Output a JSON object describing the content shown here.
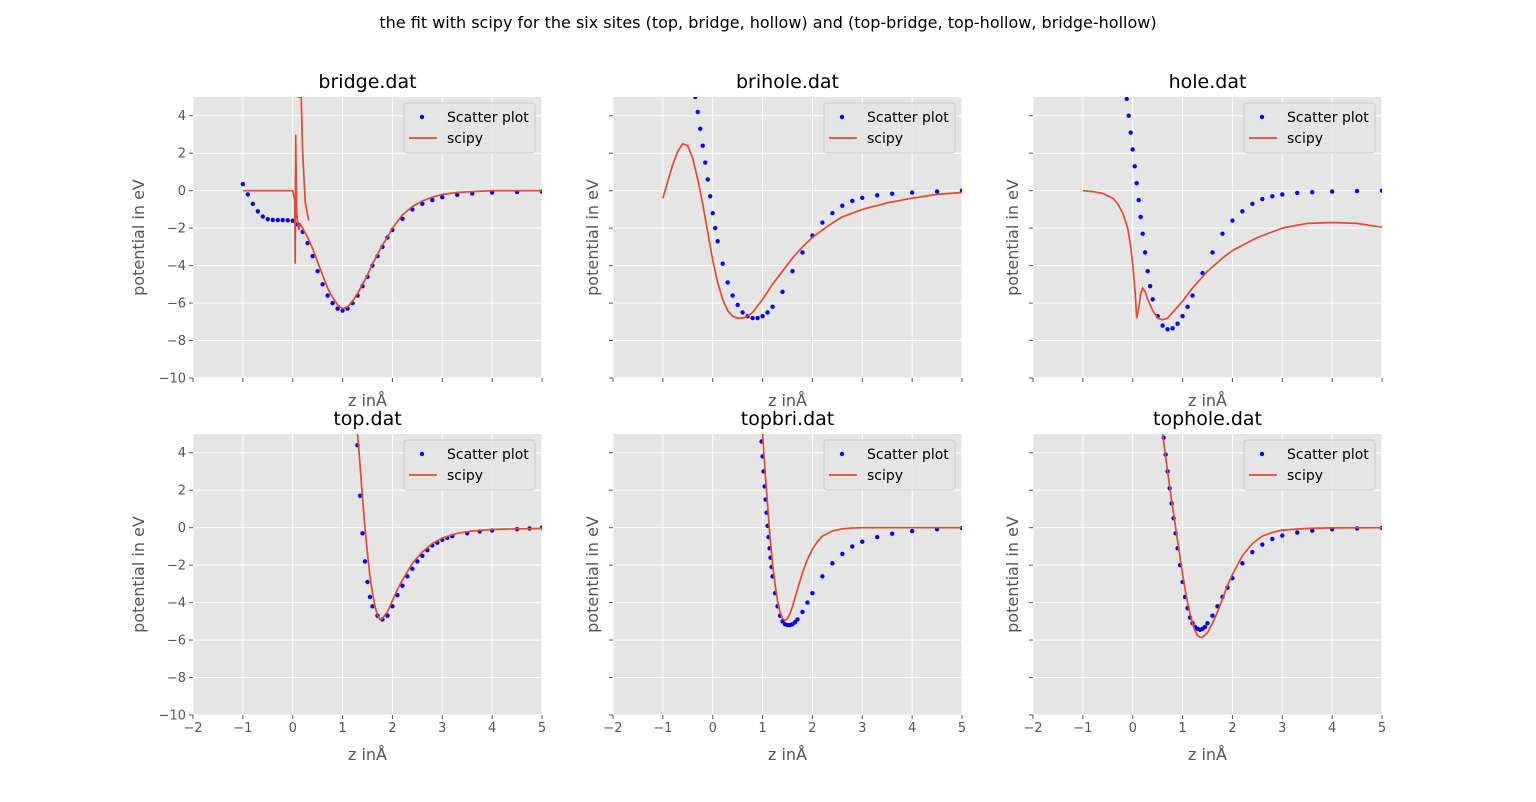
{
  "figure": {
    "suptitle": "the fit with scipy for the six sites (top, bridge, hollow) and (top-bridge, top-hollow, bridge-hollow)"
  },
  "colors": {
    "axes_bg": "#e5e5e5",
    "grid": "#ffffff",
    "scatter": "#0000ff",
    "fit": "#e24a33",
    "tick_text": "#555555"
  },
  "chart_data": [
    {
      "type": "scatter",
      "title": "bridge.dat",
      "xlabel": "z inÅ",
      "ylabel": "potential in eV",
      "xlim": [
        -2,
        5
      ],
      "ylim": [
        -10,
        5
      ],
      "xticks": [
        -2,
        -1,
        0,
        1,
        2,
        3,
        4,
        5
      ],
      "yticks": [
        -10,
        -8,
        -6,
        -4,
        -2,
        0,
        2,
        4
      ],
      "show_xtick_labels": false,
      "show_ytick_labels": true,
      "grid": true,
      "legend": "top-right",
      "series": [
        {
          "name": "Scatter plot",
          "kind": "scatter",
          "x": [
            -1.0,
            -0.9,
            -0.8,
            -0.7,
            -0.6,
            -0.5,
            -0.4,
            -0.3,
            -0.2,
            -0.1,
            0.0,
            0.1,
            0.2,
            0.3,
            0.4,
            0.5,
            0.6,
            0.7,
            0.8,
            0.9,
            1.0,
            1.1,
            1.2,
            1.3,
            1.4,
            1.5,
            1.6,
            1.7,
            1.8,
            1.9,
            2.0,
            2.2,
            2.4,
            2.6,
            2.8,
            3.0,
            3.3,
            3.6,
            4.0,
            4.5,
            5.0
          ],
          "y": [
            0.35,
            -0.2,
            -0.7,
            -1.1,
            -1.38,
            -1.52,
            -1.56,
            -1.57,
            -1.57,
            -1.58,
            -1.6,
            -1.8,
            -2.2,
            -2.8,
            -3.5,
            -4.3,
            -5.0,
            -5.6,
            -6.0,
            -6.3,
            -6.4,
            -6.3,
            -6.0,
            -5.6,
            -5.1,
            -4.6,
            -4.0,
            -3.5,
            -3.0,
            -2.5,
            -2.1,
            -1.5,
            -1.0,
            -0.7,
            -0.5,
            -0.35,
            -0.22,
            -0.15,
            -0.1,
            -0.07,
            -0.05
          ]
        },
        {
          "name": "scipy",
          "kind": "line",
          "x": [
            -1.0,
            -0.5,
            0.0,
            0.04,
            0.05,
            0.06,
            0.08,
            0.1,
            0.12,
            0.15,
            0.2,
            0.3,
            0.4,
            0.5,
            0.6,
            0.7,
            0.8,
            0.9,
            1.0,
            1.1,
            1.2,
            1.3,
            1.4,
            1.5,
            1.6,
            1.7,
            1.8,
            1.9,
            2.0,
            2.2,
            2.4,
            2.6,
            2.8,
            3.0,
            3.3,
            3.6,
            4.0,
            4.5,
            5.0
          ],
          "y": [
            0,
            0,
            0,
            -0.5,
            -3.9,
            3.0,
            -1.2,
            -1.7,
            -2.1,
            -1.8,
            -2.0,
            -2.5,
            -3.1,
            -3.8,
            -4.5,
            -5.2,
            -5.7,
            -6.1,
            -6.3,
            -6.2,
            -5.9,
            -5.5,
            -5.0,
            -4.5,
            -3.9,
            -3.4,
            -2.9,
            -2.5,
            -2.0,
            -1.3,
            -0.85,
            -0.55,
            -0.35,
            -0.2,
            -0.1,
            -0.05,
            0.0,
            0.0,
            0.0
          ],
          "spike": {
            "x": [
              0.09,
              0.17,
              0.2,
              0.25,
              0.32
            ],
            "y": [
              5,
              5,
              2.0,
              -0.6,
              -1.6
            ]
          }
        }
      ]
    },
    {
      "type": "scatter",
      "title": "brihole.dat",
      "xlabel": "z inÅ",
      "ylabel": "potential in eV",
      "xlim": [
        -2,
        5
      ],
      "ylim": [
        -10,
        5
      ],
      "xticks": [
        -2,
        -1,
        0,
        1,
        2,
        3,
        4,
        5
      ],
      "yticks": [
        -10,
        -8,
        -6,
        -4,
        -2,
        0,
        2,
        4
      ],
      "show_xtick_labels": false,
      "show_ytick_labels": false,
      "grid": true,
      "legend": "top-right",
      "series": [
        {
          "name": "Scatter plot",
          "kind": "scatter",
          "x": [
            -0.35,
            -0.3,
            -0.25,
            -0.2,
            -0.15,
            -0.1,
            -0.05,
            0.0,
            0.05,
            0.1,
            0.2,
            0.3,
            0.4,
            0.5,
            0.6,
            0.7,
            0.8,
            0.9,
            1.0,
            1.1,
            1.2,
            1.4,
            1.6,
            1.8,
            2.0,
            2.2,
            2.4,
            2.6,
            2.8,
            3.0,
            3.3,
            3.6,
            4.0,
            4.5,
            5.0
          ],
          "y": [
            5.0,
            4.2,
            3.3,
            2.4,
            1.5,
            0.6,
            -0.3,
            -1.2,
            -2.0,
            -2.7,
            -3.9,
            -4.9,
            -5.6,
            -6.1,
            -6.5,
            -6.7,
            -6.8,
            -6.8,
            -6.7,
            -6.5,
            -6.2,
            -5.4,
            -4.3,
            -3.3,
            -2.4,
            -1.7,
            -1.2,
            -0.8,
            -0.55,
            -0.38,
            -0.25,
            -0.16,
            -0.1,
            -0.05,
            0.0
          ]
        },
        {
          "name": "scipy",
          "kind": "line",
          "x": [
            -1.0,
            -0.9,
            -0.8,
            -0.7,
            -0.6,
            -0.5,
            -0.4,
            -0.3,
            -0.2,
            -0.1,
            0.0,
            0.1,
            0.2,
            0.3,
            0.4,
            0.5,
            0.6,
            0.7,
            0.8,
            1.0,
            1.2,
            1.4,
            1.6,
            1.8,
            2.0,
            2.3,
            2.6,
            3.0,
            3.5,
            4.0,
            4.5,
            5.0
          ],
          "y": [
            -0.4,
            0.5,
            1.4,
            2.1,
            2.5,
            2.4,
            1.7,
            0.6,
            -0.7,
            -2.2,
            -3.7,
            -4.9,
            -5.8,
            -6.4,
            -6.7,
            -6.8,
            -6.8,
            -6.7,
            -6.5,
            -5.8,
            -5.0,
            -4.3,
            -3.6,
            -3.0,
            -2.5,
            -1.9,
            -1.4,
            -1.0,
            -0.65,
            -0.4,
            -0.2,
            -0.1
          ]
        }
      ]
    },
    {
      "type": "scatter",
      "title": "hole.dat",
      "xlabel": "z inÅ",
      "ylabel": "potential in eV",
      "xlim": [
        -2,
        5
      ],
      "ylim": [
        -10,
        5
      ],
      "xticks": [
        -2,
        -1,
        0,
        1,
        2,
        3,
        4,
        5
      ],
      "yticks": [
        -10,
        -8,
        -6,
        -4,
        -2,
        0,
        2,
        4
      ],
      "show_xtick_labels": false,
      "show_ytick_labels": false,
      "grid": true,
      "legend": "top-right",
      "series": [
        {
          "name": "Scatter plot",
          "kind": "scatter",
          "x": [
            -0.12,
            -0.08,
            -0.04,
            0.0,
            0.04,
            0.08,
            0.12,
            0.16,
            0.2,
            0.25,
            0.3,
            0.35,
            0.4,
            0.5,
            0.6,
            0.7,
            0.8,
            0.9,
            1.0,
            1.1,
            1.2,
            1.4,
            1.6,
            1.8,
            2.0,
            2.2,
            2.4,
            2.6,
            2.8,
            3.0,
            3.3,
            3.6,
            4.0,
            4.5,
            5.0
          ],
          "y": [
            4.9,
            4.0,
            3.1,
            2.2,
            1.3,
            0.4,
            -0.5,
            -1.4,
            -2.3,
            -3.3,
            -4.3,
            -5.1,
            -5.8,
            -6.7,
            -7.2,
            -7.4,
            -7.35,
            -7.1,
            -6.7,
            -6.2,
            -5.6,
            -4.4,
            -3.3,
            -2.3,
            -1.6,
            -1.1,
            -0.7,
            -0.45,
            -0.3,
            -0.2,
            -0.12,
            -0.08,
            -0.05,
            -0.02,
            0.0
          ]
        },
        {
          "name": "scipy",
          "kind": "line",
          "x": [
            -1.0,
            -0.8,
            -0.6,
            -0.4,
            -0.3,
            -0.2,
            -0.1,
            -0.05,
            0.0,
            0.05,
            0.08,
            0.12,
            0.16,
            0.2,
            0.25,
            0.3,
            0.4,
            0.5,
            0.6,
            0.7,
            0.8,
            1.0,
            1.2,
            1.5,
            1.8,
            2.0,
            2.5,
            3.0,
            3.5,
            4.0,
            4.5,
            5.0
          ],
          "y": [
            0.0,
            -0.05,
            -0.15,
            -0.4,
            -0.7,
            -1.2,
            -2.0,
            -2.8,
            -3.9,
            -5.5,
            -6.8,
            -6.3,
            -5.5,
            -5.2,
            -5.4,
            -5.8,
            -6.4,
            -6.8,
            -6.9,
            -6.8,
            -6.5,
            -5.9,
            -5.2,
            -4.3,
            -3.6,
            -3.2,
            -2.5,
            -2.0,
            -1.75,
            -1.7,
            -1.75,
            -1.95
          ]
        }
      ]
    },
    {
      "type": "scatter",
      "title": "top.dat",
      "xlabel": "z inÅ",
      "ylabel": "potential in eV",
      "xlim": [
        -2,
        5
      ],
      "ylim": [
        -10,
        5
      ],
      "xticks": [
        -2,
        -1,
        0,
        1,
        2,
        3,
        4,
        5
      ],
      "yticks": [
        -10,
        -8,
        -6,
        -4,
        -2,
        0,
        2,
        4
      ],
      "show_xtick_labels": true,
      "show_ytick_labels": true,
      "grid": true,
      "legend": "top-right",
      "series": [
        {
          "name": "Scatter plot",
          "kind": "scatter",
          "x": [
            1.3,
            1.35,
            1.4,
            1.45,
            1.5,
            1.55,
            1.6,
            1.7,
            1.8,
            1.9,
            2.0,
            2.1,
            2.2,
            2.3,
            2.4,
            2.5,
            2.6,
            2.7,
            2.8,
            2.9,
            3.0,
            3.1,
            3.2,
            3.5,
            3.75,
            4.0,
            4.5,
            4.75,
            5.0
          ],
          "y": [
            4.4,
            1.7,
            -0.3,
            -1.8,
            -2.9,
            -3.7,
            -4.2,
            -4.7,
            -4.9,
            -4.7,
            -4.2,
            -3.6,
            -3.1,
            -2.6,
            -2.2,
            -1.8,
            -1.5,
            -1.2,
            -0.95,
            -0.8,
            -0.65,
            -0.55,
            -0.45,
            -0.3,
            -0.2,
            -0.15,
            -0.08,
            -0.04,
            0.0
          ]
        },
        {
          "name": "scipy",
          "kind": "line",
          "x": [
            1.3,
            1.35,
            1.4,
            1.45,
            1.5,
            1.55,
            1.6,
            1.65,
            1.7,
            1.75,
            1.8,
            1.9,
            2.0,
            2.1,
            2.2,
            2.4,
            2.6,
            2.8,
            3.0,
            3.3,
            3.6,
            4.0,
            4.5,
            5.0
          ],
          "y": [
            5.0,
            3.4,
            1.6,
            0.0,
            -1.4,
            -2.6,
            -3.5,
            -4.2,
            -4.7,
            -4.9,
            -4.85,
            -4.5,
            -3.9,
            -3.3,
            -2.8,
            -1.9,
            -1.3,
            -0.85,
            -0.55,
            -0.3,
            -0.18,
            -0.1,
            -0.06,
            -0.04
          ]
        }
      ]
    },
    {
      "type": "scatter",
      "title": "topbri.dat",
      "xlabel": "z inÅ",
      "ylabel": "potential in eV",
      "xlim": [
        -2,
        5
      ],
      "ylim": [
        -10,
        5
      ],
      "xticks": [
        -2,
        -1,
        0,
        1,
        2,
        3,
        4,
        5
      ],
      "yticks": [
        -10,
        -8,
        -6,
        -4,
        -2,
        0,
        2,
        4
      ],
      "show_xtick_labels": true,
      "show_ytick_labels": false,
      "grid": true,
      "legend": "top-right",
      "series": [
        {
          "name": "Scatter plot",
          "kind": "scatter",
          "x": [
            0.98,
            1.0,
            1.02,
            1.04,
            1.06,
            1.08,
            1.1,
            1.12,
            1.14,
            1.16,
            1.18,
            1.2,
            1.25,
            1.3,
            1.35,
            1.4,
            1.45,
            1.5,
            1.55,
            1.6,
            1.65,
            1.7,
            1.8,
            1.9,
            2.0,
            2.2,
            2.4,
            2.6,
            2.8,
            3.0,
            3.3,
            3.6,
            4.0,
            4.5,
            5.0
          ],
          "y": [
            4.6,
            3.8,
            3.0,
            2.2,
            1.5,
            0.8,
            0.1,
            -0.5,
            -1.1,
            -1.6,
            -2.1,
            -2.6,
            -3.5,
            -4.2,
            -4.7,
            -5.0,
            -5.15,
            -5.2,
            -5.2,
            -5.15,
            -5.05,
            -4.9,
            -4.5,
            -4.0,
            -3.5,
            -2.6,
            -1.9,
            -1.4,
            -1.0,
            -0.75,
            -0.5,
            -0.32,
            -0.18,
            -0.08,
            -0.02
          ]
        },
        {
          "name": "scipy",
          "kind": "line",
          "x": [
            1.0,
            1.05,
            1.1,
            1.15,
            1.2,
            1.25,
            1.3,
            1.35,
            1.4,
            1.45,
            1.5,
            1.55,
            1.6,
            1.7,
            1.8,
            1.9,
            2.0,
            2.1,
            2.2,
            2.4,
            2.6,
            2.8,
            3.0,
            3.5,
            4.0,
            5.0
          ],
          "y": [
            5.0,
            3.0,
            1.2,
            -0.5,
            -1.9,
            -3.0,
            -3.9,
            -4.5,
            -4.85,
            -4.95,
            -4.85,
            -4.6,
            -4.2,
            -3.3,
            -2.4,
            -1.7,
            -1.15,
            -0.75,
            -0.45,
            -0.18,
            -0.06,
            -0.02,
            0.0,
            0.0,
            0.0,
            0.0
          ]
        }
      ]
    },
    {
      "type": "scatter",
      "title": "tophole.dat",
      "xlabel": "z inÅ",
      "ylabel": "potential in eV",
      "xlim": [
        -2,
        5
      ],
      "ylim": [
        -10,
        5
      ],
      "xticks": [
        -2,
        -1,
        0,
        1,
        2,
        3,
        4,
        5
      ],
      "yticks": [
        -10,
        -8,
        -6,
        -4,
        -2,
        0,
        2,
        4
      ],
      "show_xtick_labels": true,
      "show_ytick_labels": false,
      "grid": true,
      "legend": "top-right",
      "series": [
        {
          "name": "Scatter plot",
          "kind": "scatter",
          "x": [
            0.62,
            0.66,
            0.7,
            0.74,
            0.78,
            0.82,
            0.86,
            0.9,
            0.95,
            1.0,
            1.05,
            1.1,
            1.15,
            1.2,
            1.25,
            1.3,
            1.35,
            1.4,
            1.45,
            1.5,
            1.6,
            1.7,
            1.8,
            1.9,
            2.0,
            2.2,
            2.4,
            2.6,
            2.8,
            3.0,
            3.3,
            3.6,
            4.0,
            4.5,
            5.0
          ],
          "y": [
            4.8,
            3.9,
            3.0,
            2.1,
            1.3,
            0.5,
            -0.3,
            -1.1,
            -2.0,
            -2.9,
            -3.7,
            -4.3,
            -4.8,
            -5.1,
            -5.3,
            -5.4,
            -5.45,
            -5.4,
            -5.3,
            -5.1,
            -4.7,
            -4.2,
            -3.7,
            -3.2,
            -2.7,
            -1.9,
            -1.3,
            -0.9,
            -0.6,
            -0.42,
            -0.26,
            -0.16,
            -0.09,
            -0.04,
            -0.01
          ]
        },
        {
          "name": "scipy",
          "kind": "line",
          "x": [
            0.6,
            0.65,
            0.7,
            0.75,
            0.8,
            0.85,
            0.9,
            0.95,
            1.0,
            1.05,
            1.1,
            1.15,
            1.2,
            1.25,
            1.3,
            1.35,
            1.4,
            1.5,
            1.6,
            1.7,
            1.8,
            1.9,
            2.0,
            2.2,
            2.4,
            2.6,
            2.8,
            3.0,
            3.5,
            4.0,
            5.0
          ],
          "y": [
            5.0,
            4.0,
            3.0,
            2.0,
            1.1,
            0.2,
            -0.7,
            -1.6,
            -2.5,
            -3.3,
            -4.0,
            -4.6,
            -5.1,
            -5.5,
            -5.75,
            -5.85,
            -5.85,
            -5.6,
            -5.1,
            -4.5,
            -3.8,
            -3.1,
            -2.5,
            -1.5,
            -0.85,
            -0.45,
            -0.25,
            -0.13,
            -0.04,
            -0.01,
            0.0
          ]
        }
      ]
    }
  ]
}
